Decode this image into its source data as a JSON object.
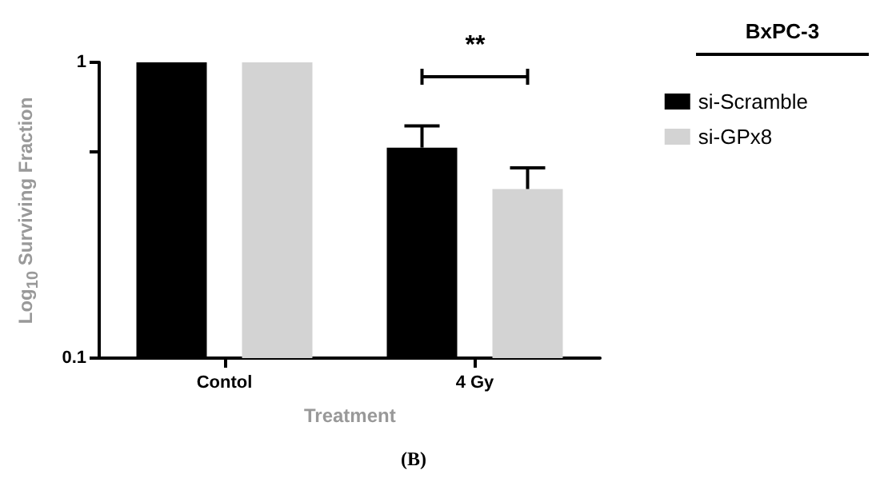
{
  "chart_data": {
    "type": "bar",
    "xlabel": "Treatment",
    "ylabel": "Log$_{10}$ Surviving Fraction",
    "legend_title": "BxPC-3",
    "categories": [
      "Contol",
      "4 Gy"
    ],
    "series": [
      {
        "name": "si-Scramble",
        "color": "#000000",
        "values": [
          1,
          0.515
        ],
        "errors": [
          null,
          [
            0.515,
            0.61
          ]
        ]
      },
      {
        "name": "si-GPx8",
        "color": "#d3d3d3",
        "values": [
          1,
          0.373
        ],
        "errors": [
          null,
          [
            0.373,
            0.44
          ]
        ]
      }
    ],
    "log": "y",
    "ylim": [
      0.1,
      1
    ],
    "yticks": [
      0.1,
      {
        "value": 0.5,
        "label": null
      },
      1
    ],
    "grid": false,
    "legend": "right",
    "annotations": [
      "**",
      "(B)"
    ]
  }
}
